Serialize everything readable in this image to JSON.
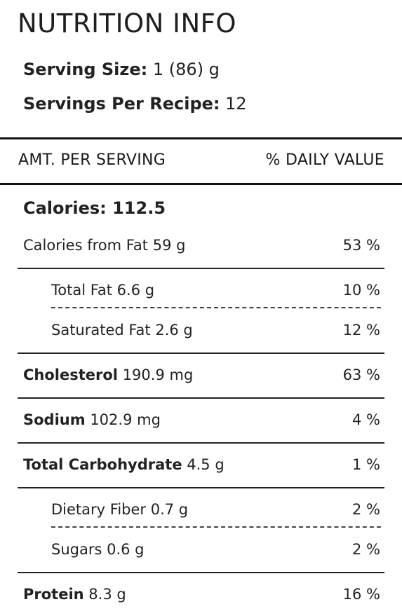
{
  "title": "NUTRITION INFO",
  "serving_size": {
    "label": "Serving Size:",
    "value": "1 (86) g"
  },
  "servings_per_recipe": {
    "label": "Servings Per Recipe:",
    "value": "12"
  },
  "header": {
    "amount": "AMT. PER SERVING",
    "daily": "% DAILY VALUE"
  },
  "calories": "Calories: 112.5",
  "rows": [
    {
      "label": "Calories from Fat",
      "amount": "59 g",
      "daily": "53 %"
    },
    {
      "label": "Total Fat",
      "amount": "6.6 g",
      "daily": "10 %"
    },
    {
      "label": "Saturated Fat",
      "amount": "2.6 g",
      "daily": "12 %"
    },
    {
      "label": "Cholesterol",
      "amount": "190.9 mg",
      "daily": "63 %"
    },
    {
      "label": "Sodium",
      "amount": "102.9 mg",
      "daily": "4 %"
    },
    {
      "label": "Total Carbohydrate",
      "amount": "4.5 g",
      "daily": "1 %"
    },
    {
      "label": "Dietary Fiber",
      "amount": "0.7 g",
      "daily": "2 %"
    },
    {
      "label": "Sugars",
      "amount": "0.6 g",
      "daily": "2 %"
    },
    {
      "label": "Protein",
      "amount": "8.3 g",
      "daily": "16 %"
    }
  ]
}
